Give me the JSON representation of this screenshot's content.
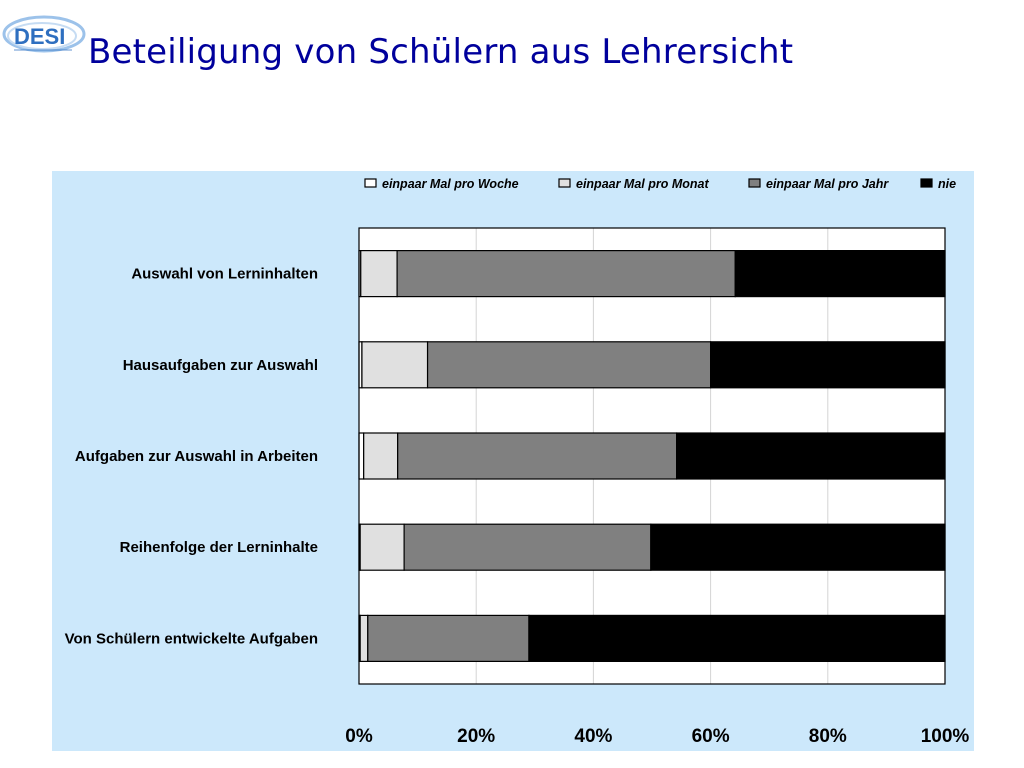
{
  "header": {
    "logo_text": "DESI",
    "title": "Beteiligung von Schülern aus Lehrersicht"
  },
  "colors": {
    "title": "#00009c",
    "panel_background": "#cce8fb",
    "logo": "#2e6fc0"
  },
  "chart_data": {
    "type": "bar",
    "orientation": "horizontal",
    "stacked": "percent",
    "categories": [
      "Auswahl von Lerninhalten",
      "Hausaufgaben zur Auswahl",
      "Aufgaben zur Auswahl in Arbeiten",
      "Reihenfolge der Lerninhalte",
      "Von Schülern entwickelte Aufgaben"
    ],
    "series": [
      {
        "name": "einpaar Mal pro Woche",
        "color": "#ffffff",
        "values": [
          0.3,
          0.5,
          0.8,
          0.2,
          0.2
        ]
      },
      {
        "name": "einpaar Mal pro Monat",
        "color": "#e0e0e0",
        "values": [
          6.2,
          11.2,
          5.8,
          7.5,
          1.3
        ]
      },
      {
        "name": "einpaar Mal pro Jahr",
        "color": "#808080",
        "values": [
          57.7,
          48.3,
          47.6,
          42.1,
          27.5
        ]
      },
      {
        "name": "nie",
        "color": "#000000",
        "values": [
          35.8,
          40.0,
          45.8,
          50.2,
          71.0
        ]
      }
    ],
    "x_ticks": [
      "0%",
      "20%",
      "40%",
      "60%",
      "80%",
      "100%"
    ],
    "xlim": [
      0,
      100
    ],
    "grid": true,
    "legend_position": "top"
  }
}
